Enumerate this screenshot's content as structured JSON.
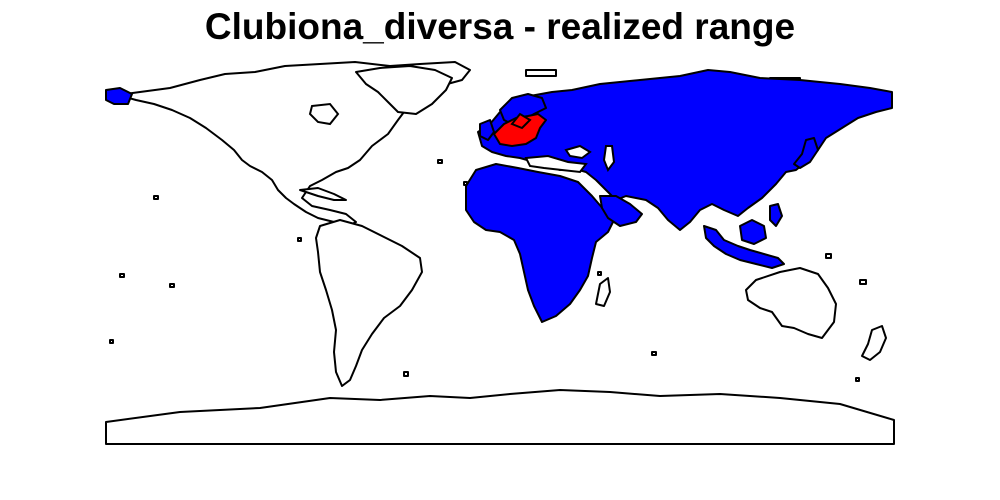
{
  "title": "Clubiona_diversa - realized range",
  "colors": {
    "background": "#ffffff",
    "land_outside_range": "#ffffff",
    "realized_range": "#0000ff",
    "origin_range": "#ff0000",
    "outline": "#000000"
  },
  "layers": {
    "realized_range_region": "Europe, Africa, Asia, Maritime Southeast Asia",
    "origin_region": "Western / Central Europe"
  }
}
